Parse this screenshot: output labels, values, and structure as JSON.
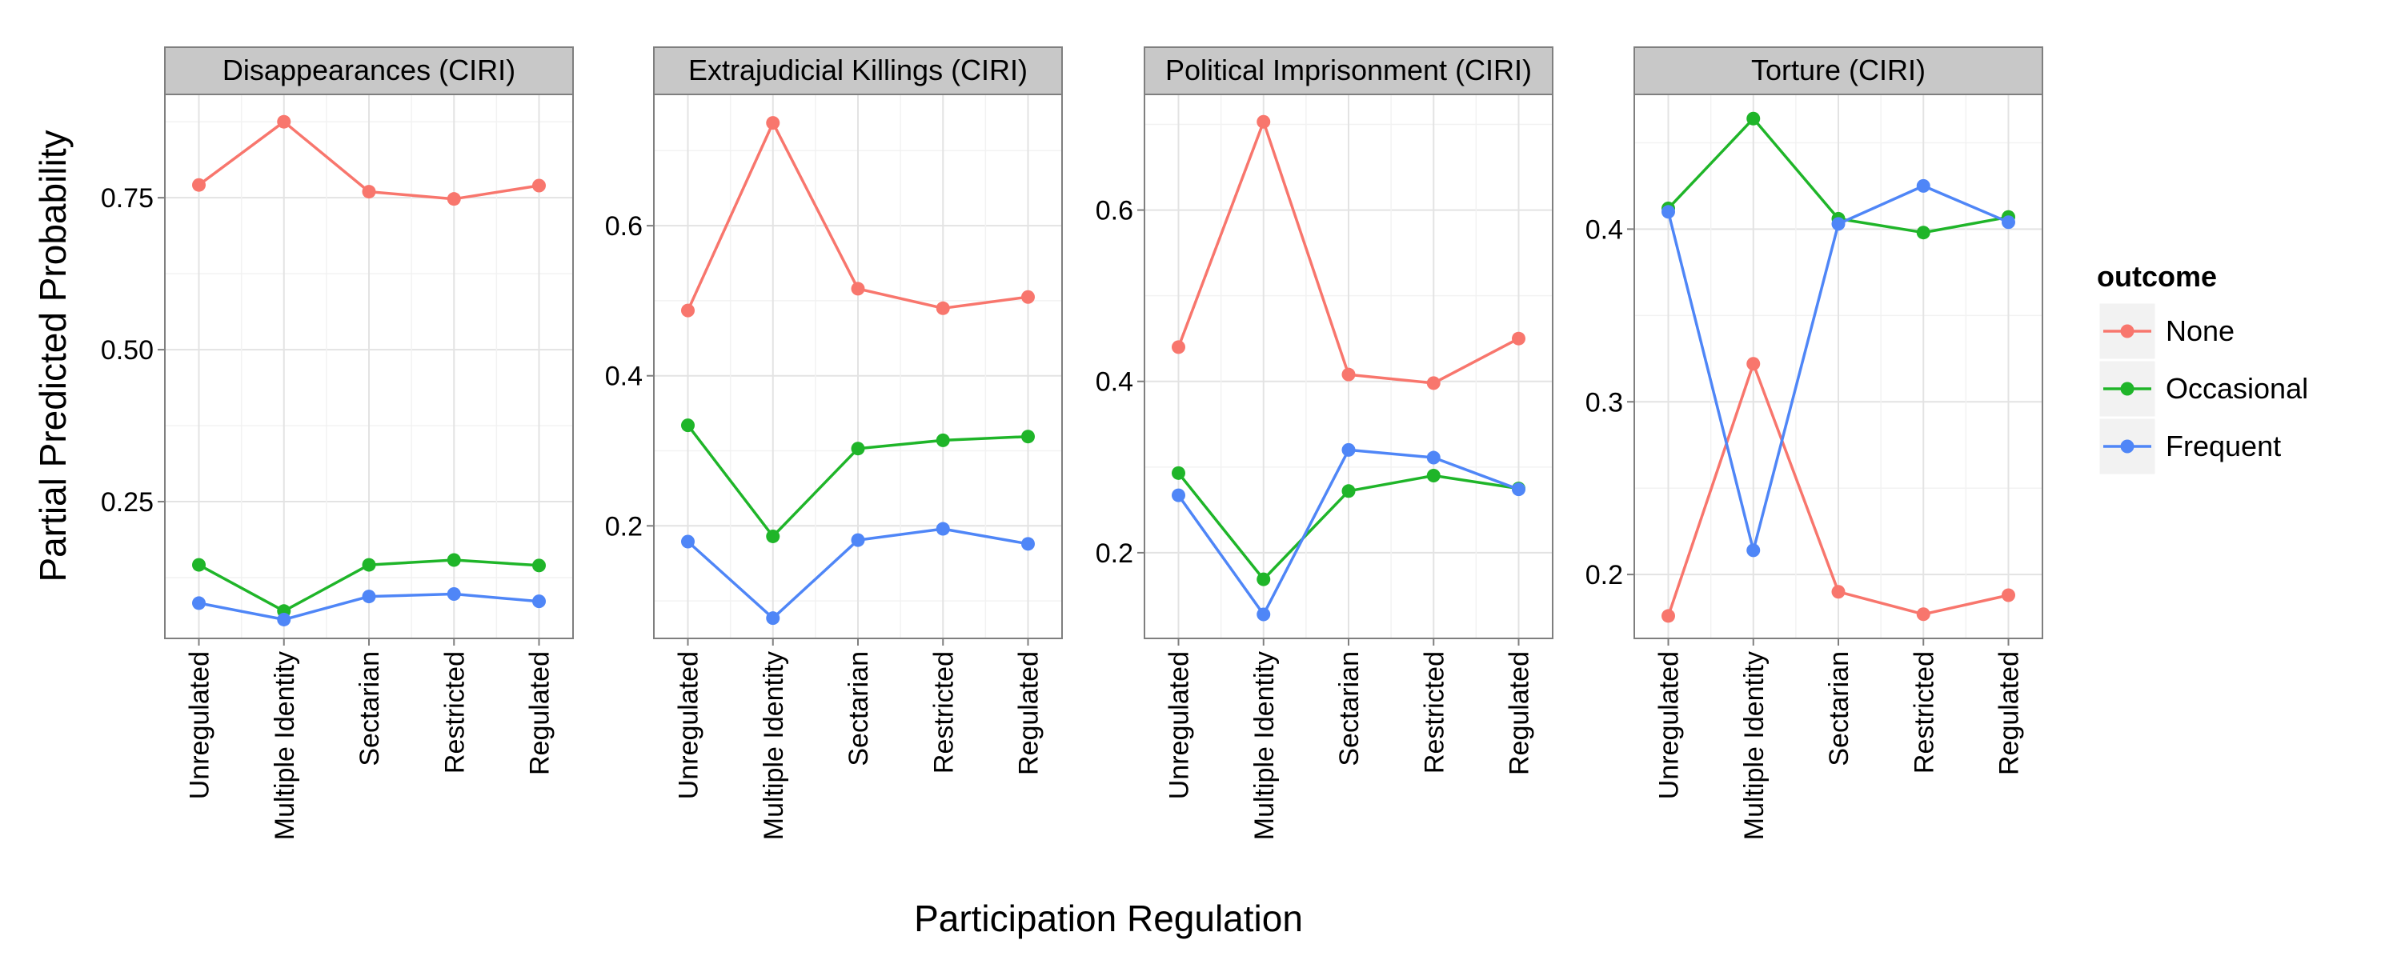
{
  "chart_data": {
    "type": "line",
    "xlabel": "Participation Regulation",
    "ylabel": "Partial Predicted Probability",
    "categories": [
      "Unregulated",
      "Multiple Identity",
      "Sectarian",
      "Restricted",
      "Regulated"
    ],
    "legend": {
      "title": "outcome",
      "position": "right",
      "entries": [
        "None",
        "Occasional",
        "Frequent"
      ]
    },
    "colors": {
      "None": "#F8766D",
      "Occasional": "#1FB529",
      "Frequent": "#4F86F7"
    },
    "grid": true,
    "panels": [
      {
        "title": "Disappearances (CIRI)",
        "ylim": [
          0.025,
          0.92
        ],
        "yticks": [
          0.25,
          0.5,
          0.75
        ],
        "ytick_labels": [
          "0.25",
          "0.50",
          "0.75"
        ],
        "series": [
          {
            "name": "None",
            "values": [
              0.771,
              0.875,
              0.76,
              0.748,
              0.77
            ]
          },
          {
            "name": "Occasional",
            "values": [
              0.146,
              0.07,
              0.146,
              0.154,
              0.145
            ]
          },
          {
            "name": "Frequent",
            "values": [
              0.083,
              0.056,
              0.094,
              0.098,
              0.086
            ]
          }
        ]
      },
      {
        "title": "Extrajudicial Killings (CIRI)",
        "ylim": [
          0.05,
          0.775
        ],
        "yticks": [
          0.2,
          0.4,
          0.6
        ],
        "ytick_labels": [
          "0.2",
          "0.4",
          "0.6"
        ],
        "series": [
          {
            "name": "None",
            "values": [
              0.487,
              0.737,
              0.516,
              0.49,
              0.505
            ]
          },
          {
            "name": "Occasional",
            "values": [
              0.334,
              0.186,
              0.303,
              0.314,
              0.319
            ]
          },
          {
            "name": "Frequent",
            "values": [
              0.179,
              0.077,
              0.181,
              0.196,
              0.176
            ]
          }
        ]
      },
      {
        "title": "Political Imprisonment (CIRI)",
        "ylim": [
          0.1,
          0.735
        ],
        "yticks": [
          0.2,
          0.4,
          0.6
        ],
        "ytick_labels": [
          "0.2",
          "0.4",
          "0.6"
        ],
        "series": [
          {
            "name": "None",
            "values": [
              0.44,
              0.703,
              0.408,
              0.398,
              0.45
            ]
          },
          {
            "name": "Occasional",
            "values": [
              0.293,
              0.169,
              0.272,
              0.29,
              0.275
            ]
          },
          {
            "name": "Frequent",
            "values": [
              0.267,
              0.128,
              0.32,
              0.311,
              0.274
            ]
          }
        ]
      },
      {
        "title": "Torture (CIRI)",
        "ylim": [
          0.163,
          0.478
        ],
        "yticks": [
          0.2,
          0.3,
          0.4
        ],
        "ytick_labels": [
          "0.2",
          "0.3",
          "0.4"
        ],
        "series": [
          {
            "name": "None",
            "values": [
              0.176,
              0.322,
              0.19,
              0.177,
              0.188
            ]
          },
          {
            "name": "Occasional",
            "values": [
              0.412,
              0.464,
              0.406,
              0.398,
              0.407
            ]
          },
          {
            "name": "Frequent",
            "values": [
              0.41,
              0.214,
              0.403,
              0.425,
              0.404
            ]
          }
        ]
      }
    ]
  }
}
